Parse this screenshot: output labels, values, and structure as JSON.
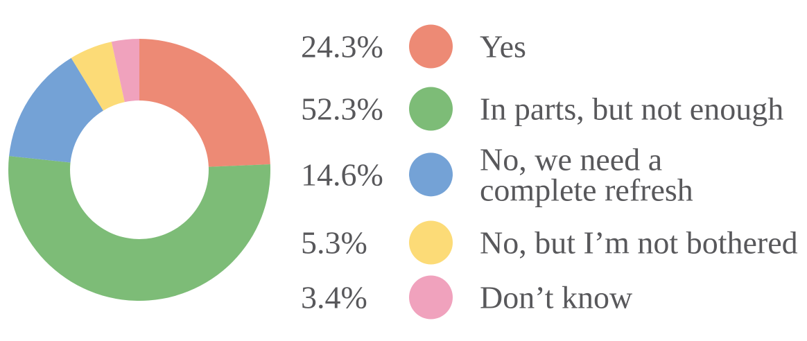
{
  "chart_data": {
    "type": "pie",
    "donut": true,
    "inner_radius_ratio": 0.529,
    "start_angle_deg": 0,
    "direction": "clockwise",
    "legend_position": "right",
    "title": "",
    "text_color": "#58585b",
    "background": "#ffffff",
    "segments": [
      {
        "label": "Yes",
        "value": 24.3,
        "display": "24.3%",
        "color": "#ed8a75"
      },
      {
        "label": "In parts, but not enough",
        "value": 52.3,
        "display": "52.3%",
        "color": "#7dbc77"
      },
      {
        "label": "No, we need a\ncomplete refresh",
        "value": 14.6,
        "display": "14.6%",
        "color": "#74a2d6"
      },
      {
        "label": "No, but I’m not bothered",
        "value": 5.3,
        "display": "5.3%",
        "color": "#fcdb77"
      },
      {
        "label": "Don’t know",
        "value": 3.4,
        "display": "3.4%",
        "color": "#f0a2bd"
      }
    ]
  }
}
